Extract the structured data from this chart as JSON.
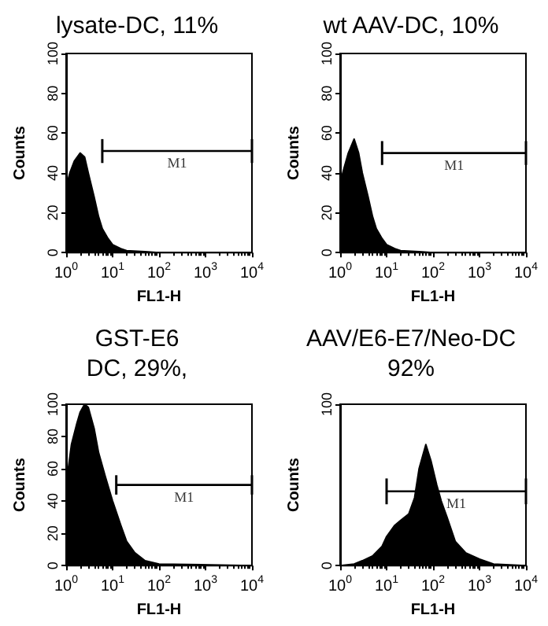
{
  "chart_data": [
    {
      "type": "area",
      "title": "lysate-DC, 11%",
      "xlabel": "FL1-H",
      "ylabel": "Counts",
      "log": "x",
      "grid": false,
      "legend": false,
      "xlim": [
        1,
        10000
      ],
      "ylim": [
        0,
        100
      ],
      "xticks": [
        {
          "value": 1,
          "label": "10$^{0}$"
        },
        {
          "value": 10,
          "label": "10$^{1}$"
        },
        {
          "value": 100,
          "label": "10$^{2}$"
        },
        {
          "value": 1000,
          "label": "10$^{3}$"
        },
        {
          "value": 10000,
          "label": "10$^{4}$"
        }
      ],
      "yticks": [
        0,
        20,
        40,
        60,
        80,
        100
      ],
      "series": [
        {
          "color": "#000000",
          "x": [
            1,
            1.2,
            1.5,
            2,
            2.5,
            3,
            4,
            5,
            6,
            8,
            10,
            15,
            20,
            50,
            100,
            10000
          ],
          "values": [
            33,
            40,
            46,
            50,
            48,
            40,
            28,
            18,
            12,
            7,
            4,
            2,
            1,
            0.5,
            0,
            0
          ]
        },
        {
          "name": "M1",
          "type": "line",
          "color": "#000000",
          "x": [
            6,
            10000
          ],
          "values": [
            51,
            51
          ],
          "errors": [
            6,
            6
          ]
        }
      ]
    },
    {
      "type": "area",
      "title": "wt AAV-DC, 10%",
      "xlabel": "FL1-H",
      "ylabel": "Counts",
      "log": "x",
      "grid": false,
      "legend": false,
      "xlim": [
        1,
        10000
      ],
      "ylim": [
        0,
        100
      ],
      "xticks": [
        {
          "value": 1,
          "label": "10$^{0}$"
        },
        {
          "value": 10,
          "label": "10$^{1}$"
        },
        {
          "value": 100,
          "label": "10$^{2}$"
        },
        {
          "value": 1000,
          "label": "10$^{3}$"
        },
        {
          "value": 10000,
          "label": "10$^{4}$"
        }
      ],
      "yticks": [
        0,
        20,
        40,
        60,
        80,
        100
      ],
      "series": [
        {
          "color": "#000000",
          "x": [
            1,
            1.2,
            1.5,
            2,
            2.5,
            3,
            4,
            5,
            6,
            8,
            10,
            15,
            20,
            50,
            100,
            10000
          ],
          "values": [
            35,
            42,
            50,
            57,
            50,
            40,
            28,
            18,
            12,
            7,
            4,
            2,
            1,
            0.5,
            0,
            0
          ]
        },
        {
          "name": "M1",
          "type": "line",
          "color": "#000000",
          "x": [
            8,
            10000
          ],
          "values": [
            50,
            50
          ],
          "errors": [
            6,
            6
          ]
        }
      ]
    },
    {
      "type": "area",
      "title": "GST-E6\nDC, 29%,",
      "xlabel": "FL1-H",
      "ylabel": "Counts",
      "log": "x",
      "grid": false,
      "legend": false,
      "xlim": [
        1,
        10000
      ],
      "ylim": [
        0,
        100
      ],
      "xticks": [
        {
          "value": 1,
          "label": "10$^{0}$"
        },
        {
          "value": 10,
          "label": "10$^{1}$"
        },
        {
          "value": 100,
          "label": "10$^{2}$"
        },
        {
          "value": 1000,
          "label": "10$^{3}$"
        },
        {
          "value": 10000,
          "label": "10$^{4}$"
        }
      ],
      "yticks": [
        0,
        20,
        40,
        60,
        80,
        100
      ],
      "series": [
        {
          "color": "#000000",
          "x": [
            1,
            1.3,
            1.7,
            2,
            2.5,
            3,
            4,
            5,
            7,
            10,
            15,
            20,
            30,
            50,
            100,
            10000
          ],
          "values": [
            50,
            75,
            88,
            95,
            100,
            98,
            85,
            70,
            55,
            40,
            25,
            15,
            8,
            3,
            1,
            0
          ]
        },
        {
          "name": "M1",
          "type": "line",
          "color": "#000000",
          "x": [
            12,
            10000
          ],
          "values": [
            50,
            50
          ],
          "errors": [
            6,
            6
          ]
        }
      ]
    },
    {
      "type": "area",
      "title": "AAV/E6-E7/Neo-DC\n92%",
      "xlabel": "FL1-H",
      "ylabel": "Counts",
      "log": "x",
      "grid": false,
      "legend": false,
      "xlim": [
        1,
        10000
      ],
      "ylim": [
        0,
        100
      ],
      "xticks": [
        {
          "value": 1,
          "label": "10$^{0}$"
        },
        {
          "value": 10,
          "label": "10$^{1}$"
        },
        {
          "value": 100,
          "label": "10$^{2}$"
        },
        {
          "value": 1000,
          "label": "10$^{3}$"
        },
        {
          "value": 10000,
          "label": "10$^{4}$"
        }
      ],
      "yticks": [
        0,
        100
      ],
      "series": [
        {
          "color": "#000000",
          "x": [
            1,
            2,
            3,
            5,
            8,
            10,
            15,
            20,
            30,
            40,
            50,
            70,
            90,
            120,
            150,
            200,
            300,
            500,
            1000,
            2000,
            10000
          ],
          "values": [
            0,
            1,
            3,
            6,
            12,
            18,
            25,
            28,
            32,
            42,
            60,
            75,
            65,
            50,
            40,
            30,
            15,
            8,
            4,
            1,
            0
          ]
        },
        {
          "name": "M1",
          "type": "line",
          "color": "#000000",
          "x": [
            10,
            10000
          ],
          "values": [
            46,
            46
          ],
          "errors": [
            8,
            8
          ]
        }
      ]
    }
  ]
}
